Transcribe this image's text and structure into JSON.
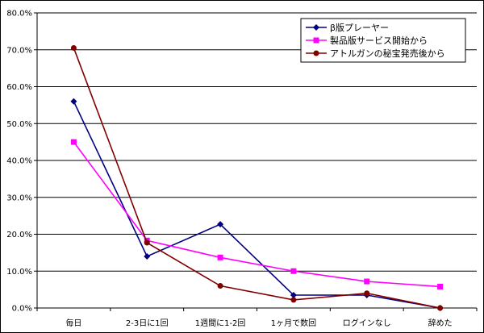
{
  "chart_data": {
    "type": "line",
    "categories": [
      "毎日",
      "2-3日に1回",
      "1週間に1-2回",
      "1ヶ月で数回",
      "ログインなし",
      "辞めた"
    ],
    "y_ticks": [
      "0.0%",
      "10.0%",
      "20.0%",
      "30.0%",
      "40.0%",
      "50.0%",
      "60.0%",
      "70.0%",
      "80.0%"
    ],
    "ylim": [
      0,
      80
    ],
    "grid": true,
    "legend_position": "top-right",
    "series": [
      {
        "name": "β版プレーヤー",
        "color": "#000080",
        "marker": "diamond",
        "values": [
          56.0,
          14.0,
          22.7,
          3.5,
          3.5,
          0.0
        ]
      },
      {
        "name": "製品版サービス開始から",
        "color": "#ff00ff",
        "marker": "square",
        "values": [
          45.0,
          18.3,
          13.7,
          10.0,
          7.2,
          5.8
        ]
      },
      {
        "name": "アトルガンの秘宝発売後から",
        "color": "#800000",
        "marker": "circle",
        "values": [
          70.5,
          17.7,
          6.0,
          2.2,
          4.0,
          0.0
        ]
      }
    ]
  }
}
